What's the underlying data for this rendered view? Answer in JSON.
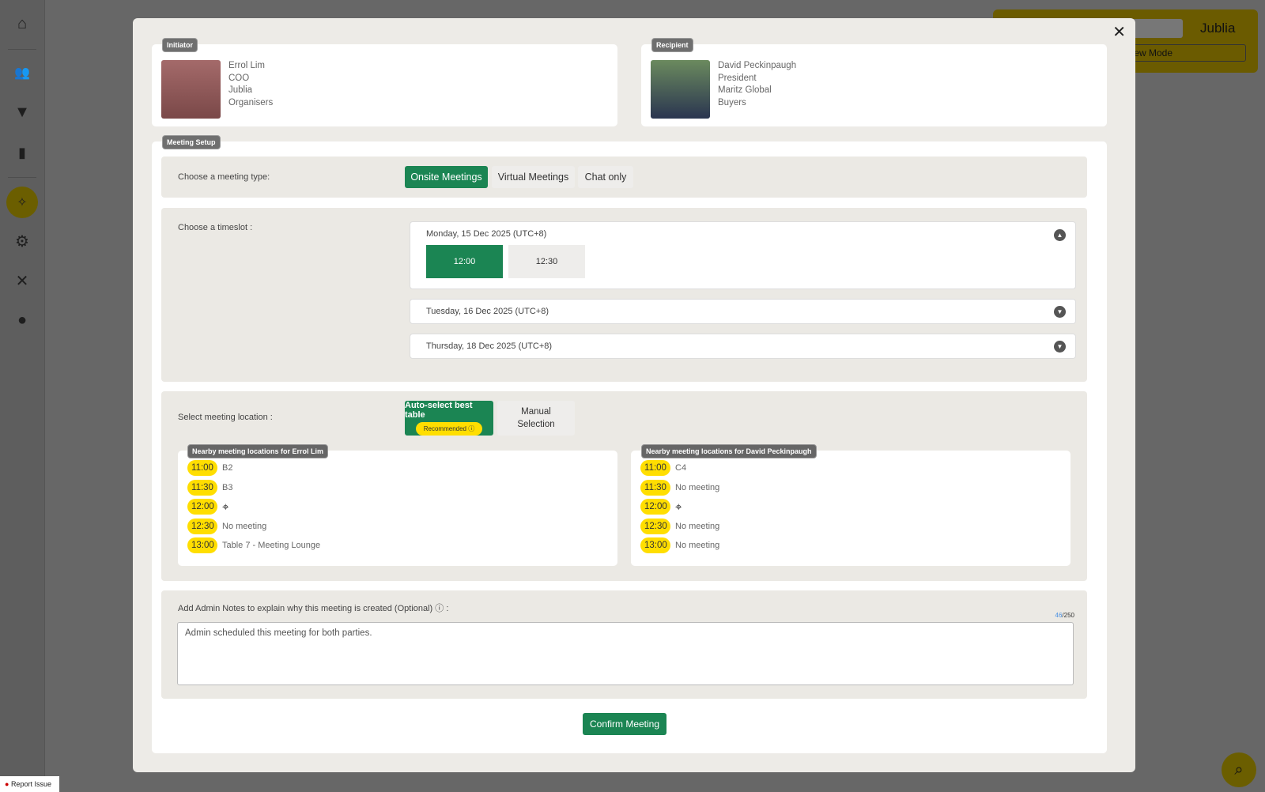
{
  "sidebar": {
    "items": [
      {
        "icon": "home-icon"
      },
      {
        "icon": "users-icon"
      },
      {
        "icon": "filter-icon"
      },
      {
        "icon": "chart-icon"
      },
      {
        "icon": "magic-wand-icon",
        "active": true
      },
      {
        "icon": "gear-icon"
      },
      {
        "icon": "tools-icon"
      },
      {
        "icon": "user-circle-icon"
      }
    ]
  },
  "topbar": {
    "logo": "Jublia",
    "mode_label": "eview Mode"
  },
  "report_issue": "Report Issue",
  "modal": {
    "initiator": {
      "tag": "Initiator",
      "name": "Errol Lim",
      "title": "COO",
      "company": "Jublia",
      "group": "Organisers"
    },
    "recipient": {
      "tag": "Recipient",
      "name": "David Peckinpaugh",
      "title": "President",
      "company": "Maritz Global",
      "group": "Buyers"
    },
    "setup_tag": "Meeting Setup",
    "meeting_type": {
      "label": "Choose a meeting type:",
      "options": [
        "Onsite Meetings",
        "Virtual Meetings",
        "Chat only"
      ],
      "selected": "Onsite Meetings"
    },
    "timeslot": {
      "label": "Choose a timeslot :",
      "days": [
        {
          "date": "Monday, 15 Dec 2025 (UTC+8)",
          "expanded": true,
          "slots": [
            "12:00",
            "12:30"
          ],
          "selected": "12:00"
        },
        {
          "date": "Tuesday, 16 Dec 2025 (UTC+8)",
          "expanded": false
        },
        {
          "date": "Thursday, 18 Dec 2025 (UTC+8)",
          "expanded": false
        }
      ]
    },
    "location": {
      "label": "Select meeting location :",
      "auto_label": "Auto-select best table",
      "recommended": "Recommended",
      "manual_line1": "Manual",
      "manual_line2": "Selection",
      "initiator_panel": {
        "title": "Nearby meeting locations for Errol Lim",
        "rows": [
          {
            "time": "11:00",
            "text": "B2"
          },
          {
            "time": "11:30",
            "text": "B3"
          },
          {
            "time": "12:00",
            "text": ""
          },
          {
            "time": "12:30",
            "text": "No meeting"
          },
          {
            "time": "13:00",
            "text": "Table 7 - Meeting Lounge"
          }
        ]
      },
      "recipient_panel": {
        "title": "Nearby meeting locations for David Peckinpaugh",
        "rows": [
          {
            "time": "11:00",
            "text": "C4"
          },
          {
            "time": "11:30",
            "text": "No meeting"
          },
          {
            "time": "12:00",
            "text": ""
          },
          {
            "time": "12:30",
            "text": "No meeting"
          },
          {
            "time": "13:00",
            "text": "No meeting"
          }
        ]
      }
    },
    "notes": {
      "label": "Add Admin Notes to explain why this meeting is created (Optional)",
      "suffix": " :",
      "count": "46",
      "max": "/250",
      "value": "Admin scheduled this meeting for both parties."
    },
    "confirm": "Confirm Meeting"
  },
  "colors": {
    "accent": "#1b8553",
    "highlight": "#ffde00"
  }
}
